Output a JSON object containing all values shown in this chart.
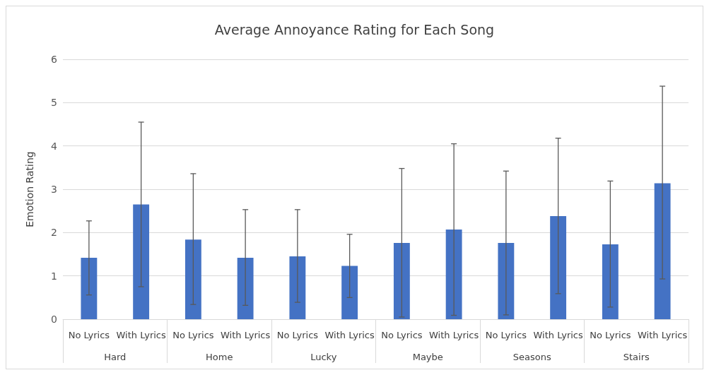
{
  "chart_data": {
    "type": "bar",
    "title": "Average Annoyance Rating for Each Song",
    "ylabel": "Emotion Rating",
    "categories": [
      "No Lyrics",
      "With Lyrics",
      "No Lyrics",
      "With Lyrics",
      "No Lyrics",
      "With Lyrics",
      "No Lyrics",
      "With Lyrics",
      "No Lyrics",
      "With Lyrics",
      "No Lyrics",
      "With Lyrics"
    ],
    "annotations": [
      "Hard",
      "Home",
      "Lucky",
      "Maybe",
      "Seasons",
      "Stairs"
    ],
    "values": [
      1.42,
      2.65,
      1.84,
      1.42,
      1.45,
      1.23,
      1.76,
      2.07,
      1.76,
      2.38,
      1.73,
      3.14
    ],
    "errors": [
      [
        0.56,
        2.27
      ],
      [
        0.75,
        4.55
      ],
      [
        0.34,
        3.36
      ],
      [
        0.32,
        2.53
      ],
      [
        0.39,
        2.53
      ],
      [
        0.5,
        1.96
      ],
      [
        0.05,
        3.48
      ],
      [
        0.09,
        4.05
      ],
      [
        0.1,
        3.42
      ],
      [
        0.59,
        4.18
      ],
      [
        0.28,
        3.19
      ],
      [
        0.93,
        5.38
      ]
    ],
    "color": "#4472c4",
    "ylim": [
      0,
      6
    ],
    "yticks": [
      0,
      1,
      2,
      3,
      4,
      5,
      6
    ],
    "grid": "y"
  }
}
